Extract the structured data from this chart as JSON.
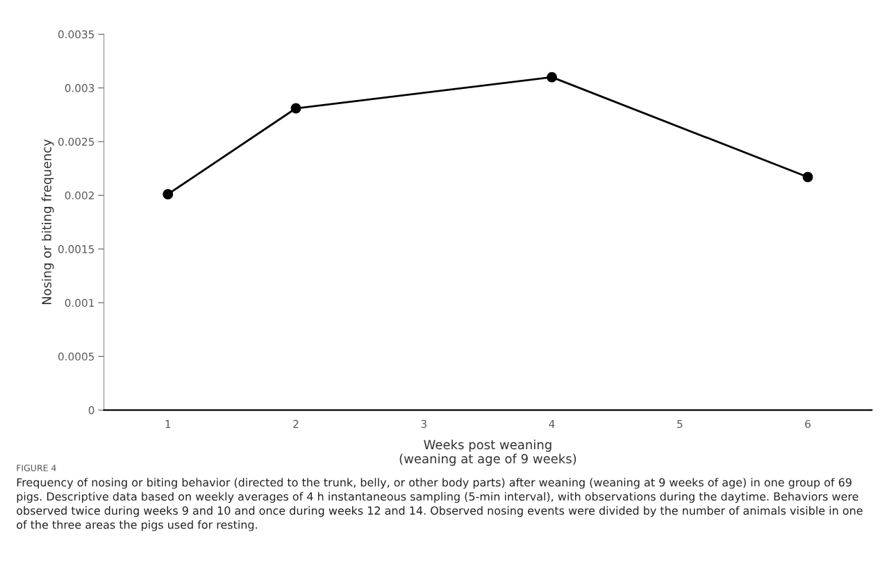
{
  "chart_data": {
    "type": "line",
    "xlabel": "Weeks post weaning\n(weaning at age of 9 weeks)",
    "ylabel": "Nosing or biting frequency",
    "categories": [
      "1",
      "2",
      "3",
      "4",
      "5",
      "6"
    ],
    "series": [
      {
        "color": "#000000",
        "x": [
          "1",
          "2",
          "4",
          "6"
        ],
        "values": [
          0.00201,
          0.00281,
          0.0031,
          0.00217
        ]
      }
    ],
    "ylim": [
      0,
      0.0035
    ],
    "yticks": [
      0,
      0.0005,
      0.001,
      0.0015,
      0.002,
      0.0025,
      0.003,
      0.0035
    ],
    "marker": "circle",
    "line_style": "solid",
    "grid": false,
    "annotations": [
      "FIGURE 4",
      "Frequency of nosing or biting behavior (directed to the trunk, belly, or other body parts) after weaning (weaning at 9 weeks of age) in one group of 69 pigs. Descriptive data based on weekly averages of 4 h instantaneous sampling (5-min interval), with observations during the daytime. Behaviors were observed twice during weeks 9 and 10 and once during weeks 12 and 14. Observed nosing events were divided by the number of animals visible in one of the three areas the pigs used for resting."
    ]
  }
}
